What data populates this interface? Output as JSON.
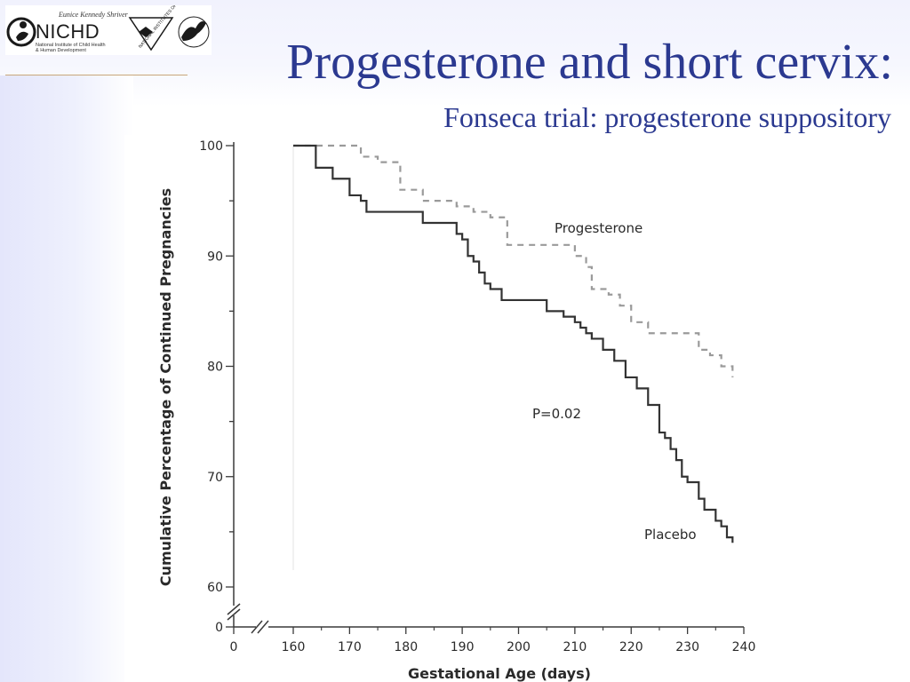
{
  "slide": {
    "title": "Progesterone and short cervix:",
    "subtitle": "Fonseca trial: progesterone suppository",
    "colors": {
      "title": "#2b3990",
      "background_tint": "#e4e6fb"
    }
  },
  "logo": {
    "script_text": "Eunice Kennedy Shriver",
    "acronym": "NICHD",
    "institute_line1": "National Institute of Child Health",
    "institute_line2": "& Human Development",
    "nih_text": "NATIONAL INSTITUTES OF HEALTH",
    "hhs_icon": "hhs-eagle-icon"
  },
  "chart_data": {
    "type": "line",
    "xlabel": "Gestational Age (days)",
    "ylabel": "Cumulative Percentage of Continued Pregnancies",
    "x_ticks": [
      0,
      160,
      170,
      180,
      190,
      200,
      210,
      220,
      230,
      240
    ],
    "y_ticks": [
      0,
      60,
      70,
      80,
      90,
      100
    ],
    "xlim": [
      160,
      240
    ],
    "ylim": [
      60,
      100
    ],
    "axis_breaks": true,
    "grid": false,
    "annotation": "P=0.02",
    "series": [
      {
        "name": "Progesterone",
        "style": "dashed",
        "color": "#9a9a9a",
        "x": [
          160,
          172,
          175,
          179,
          183,
          189,
          192,
          195,
          198,
          210,
          212,
          213,
          216,
          218,
          220,
          223,
          232,
          234,
          236,
          238
        ],
        "y": [
          100,
          99,
          98.5,
          96,
          95,
          94.5,
          94,
          93.5,
          91,
          90,
          89,
          87,
          86.5,
          85.5,
          84,
          83,
          81.5,
          81,
          80,
          79
        ]
      },
      {
        "name": "Placebo",
        "style": "solid",
        "color": "#333333",
        "x": [
          160,
          164,
          167,
          170,
          172,
          173,
          183,
          189,
          190,
          191,
          192,
          193,
          194,
          195,
          197,
          205,
          208,
          210,
          211,
          212,
          213,
          215,
          217,
          219,
          221,
          223,
          225,
          226,
          227,
          228,
          229,
          230,
          232,
          233,
          235,
          236,
          237,
          238
        ],
        "y": [
          100,
          98,
          97,
          95.5,
          95,
          94,
          93,
          92,
          91.5,
          90,
          89.5,
          88.5,
          87.5,
          87,
          86,
          85,
          84.5,
          84,
          83.5,
          83,
          82.5,
          81.5,
          80.5,
          79,
          78,
          76.5,
          74,
          73.5,
          72.5,
          71.5,
          70,
          69.5,
          68,
          67,
          66,
          65.5,
          64.5,
          64
        ]
      }
    ]
  }
}
